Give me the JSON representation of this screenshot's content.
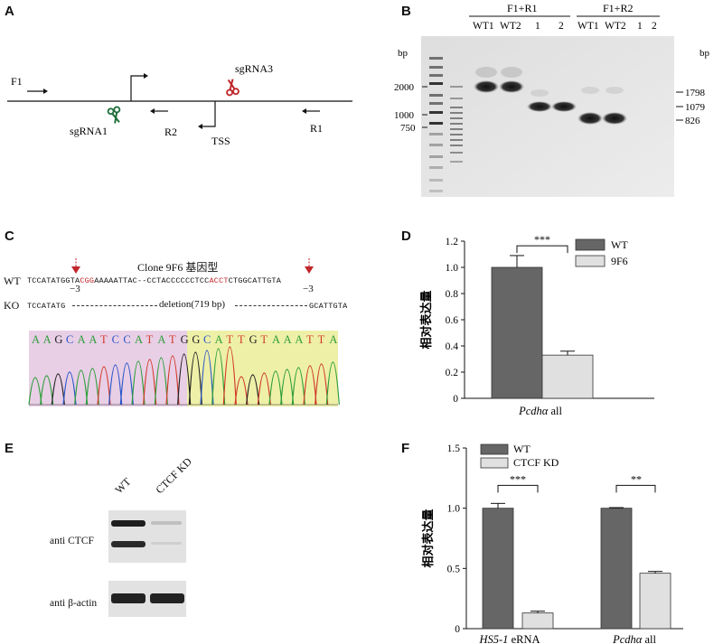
{
  "panels": {
    "A": "A",
    "B": "B",
    "C": "C",
    "D": "D",
    "E": "E",
    "F": "F"
  },
  "panelA": {
    "labels": {
      "f1": "F1",
      "sgrna1": "sgRNA1",
      "sgrna3": "sgRNA3",
      "r2": "R2",
      "r1": "R1",
      "tss": "TSS"
    },
    "colors": {
      "sgrna1": "#1f6f3a",
      "sgrna3": "#c0262b"
    }
  },
  "panelB": {
    "group1": "F1+R1",
    "group2": "F1+R2",
    "lanes": [
      "WT1",
      "WT2",
      "1",
      "2",
      "WT1",
      "WT2",
      "1",
      "2"
    ],
    "bp_left": "bp",
    "bp_right": "bp",
    "marker_left": [
      "2000",
      "1000",
      "750"
    ],
    "marker_right": [
      "1798",
      "1079",
      "826"
    ]
  },
  "panelC": {
    "title": "Clone 9F6 基因型",
    "wt_label": "WT",
    "ko_label": "KO",
    "wt_seq_parts": [
      "TCCATATGG",
      "TA",
      "CGG",
      "AAAAATTAC--CCTACCCCCCTCC",
      "ACCT",
      "CTGG",
      "CATTGTA"
    ],
    "cut_left": "−3",
    "cut_right": "−3",
    "ko_left": "TCCATATG",
    "ko_mid": "deletion(719 bp)",
    "ko_right": "GCATTGTA",
    "chromatogram_bases": [
      "A",
      "A",
      "G",
      "C",
      "A",
      "A",
      "T",
      "C",
      "C",
      "A",
      "T",
      "A",
      "T",
      "G",
      "G",
      "C",
      "A",
      "T",
      "T",
      "G",
      "T",
      "A",
      "A",
      "A",
      "T",
      "T",
      "A"
    ]
  },
  "panelD": {
    "ylabel": "相对表达量",
    "xlabel_italic": "Pcdhα",
    "xlabel_rest": " all",
    "legend": [
      "WT",
      "9F6"
    ],
    "significance": "***",
    "ticks": [
      "0",
      "0.2",
      "0.4",
      "0.6",
      "0.8",
      "1.0",
      "1.2"
    ]
  },
  "panelE": {
    "lanes": [
      "WT",
      "CTCF KD"
    ],
    "row1": "anti CTCF",
    "row2": "anti β-actin"
  },
  "panelF": {
    "ylabel": "相对表达量",
    "legend": [
      "WT",
      "CTCF KD"
    ],
    "ticks": [
      "0",
      "0.5",
      "1.0",
      "1.5"
    ],
    "cat1_italic": "HS5-1",
    "cat1_rest": " eRNA",
    "cat2_italic": "Pcdhα",
    "cat2_rest": " all",
    "sig1": "***",
    "sig2": "**"
  },
  "chart_data": [
    {
      "type": "bar",
      "panel": "D",
      "categories": [
        "Pcdhα all"
      ],
      "series": [
        {
          "name": "WT",
          "values": [
            1.0
          ],
          "error": [
            0.09
          ]
        },
        {
          "name": "9F6",
          "values": [
            0.33
          ],
          "error": [
            0.03
          ]
        }
      ],
      "ylabel": "相对表达量",
      "ylim": [
        0,
        1.2
      ],
      "colors": [
        "#666666",
        "#e0e0e0"
      ],
      "legend": "top-right"
    },
    {
      "type": "bar",
      "panel": "F",
      "categories": [
        "HS5-1 eRNA",
        "Pcdhα all"
      ],
      "series": [
        {
          "name": "WT",
          "values": [
            1.0,
            1.0
          ],
          "error": [
            0.04,
            0.005
          ]
        },
        {
          "name": "CTCF KD",
          "values": [
            0.13,
            0.46
          ],
          "error": [
            0.015,
            0.015
          ]
        }
      ],
      "ylabel": "相对表达量",
      "ylim": [
        0,
        1.5
      ],
      "colors": [
        "#666666",
        "#e0e0e0"
      ],
      "legend": "top-left"
    }
  ]
}
